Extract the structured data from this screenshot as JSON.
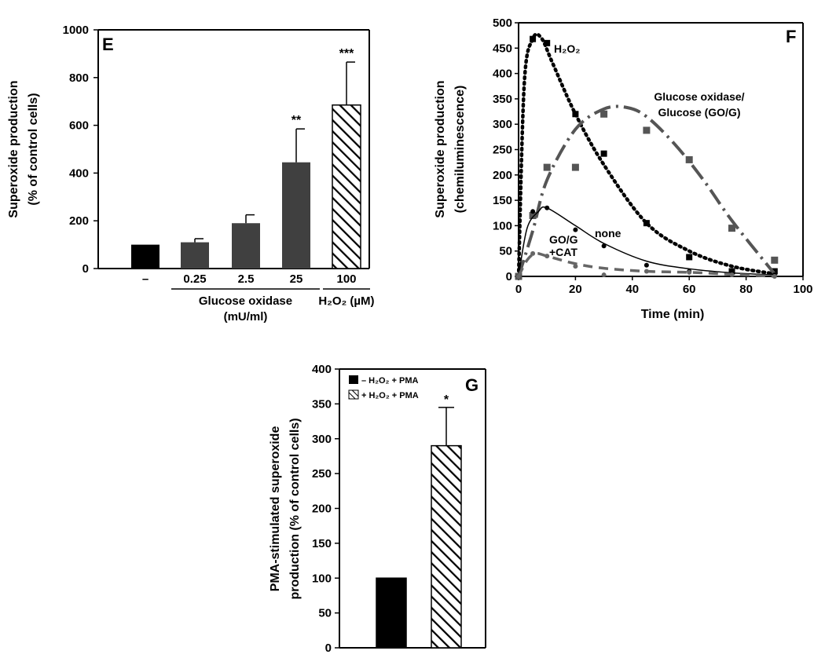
{
  "chart_data": [
    {
      "panel": "E",
      "type": "bar",
      "ylabel_line1": "Superoxide production",
      "ylabel_line2": "(% of control cells)",
      "ylim": [
        0,
        1000
      ],
      "yticks": [
        0,
        200,
        400,
        600,
        800,
        1000
      ],
      "categories": [
        "–",
        "0.25",
        "2.5",
        "25",
        "100"
      ],
      "values": [
        100,
        110,
        190,
        445,
        685
      ],
      "errors": [
        0,
        15,
        35,
        140,
        180
      ],
      "significance": [
        "",
        "",
        "",
        "**",
        "***"
      ],
      "styles": [
        "black",
        "gray",
        "gray",
        "gray",
        "hatched"
      ],
      "group_labels": [
        {
          "line1": "Glucose oxidase",
          "line2": "(mU/ml)",
          "from": 1,
          "to": 3
        },
        {
          "line1": "H₂O₂ (µM)",
          "line2": "",
          "from": 4,
          "to": 4
        }
      ],
      "colors": {
        "black": "#000000",
        "gray": "#404040",
        "hatch": "#000000"
      }
    },
    {
      "panel": "F",
      "type": "line",
      "ylabel_line1": "Superoxide production",
      "ylabel_line2": "(chemiluminescence)",
      "xlabel": "Time (min)",
      "xlim": [
        0,
        100
      ],
      "ylim": [
        0,
        500
      ],
      "xticks": [
        0,
        20,
        40,
        60,
        80,
        100
      ],
      "yticks": [
        0,
        50,
        100,
        150,
        200,
        250,
        300,
        350,
        400,
        450,
        500
      ],
      "series": [
        {
          "name": "H2O2",
          "label": "H₂O₂",
          "style": "dotted",
          "color": "#000000",
          "marker": "square",
          "points": [
            [
              0,
              0
            ],
            [
              5,
              468
            ],
            [
              10,
              460
            ],
            [
              20,
              320
            ],
            [
              30,
              242
            ],
            [
              45,
              105
            ],
            [
              60,
              38
            ],
            [
              75,
              10
            ],
            [
              90,
              10
            ]
          ]
        },
        {
          "name": "GO/G",
          "label_line1": "Glucose oxidase/",
          "label_line2": "Glucose (GO/G)",
          "style": "dashdot",
          "color": "#555555",
          "marker": "square",
          "points": [
            [
              0,
              0
            ],
            [
              5,
              120
            ],
            [
              10,
              215
            ],
            [
              20,
              215
            ],
            [
              30,
              320
            ],
            [
              45,
              288
            ],
            [
              60,
              230
            ],
            [
              75,
              95
            ],
            [
              90,
              32
            ]
          ]
        },
        {
          "name": "none",
          "label": "none",
          "style": "solid",
          "color": "#000000",
          "marker": "circle",
          "points": [
            [
              0,
              0
            ],
            [
              5,
              128
            ],
            [
              10,
              135
            ],
            [
              20,
              92
            ],
            [
              30,
              60
            ],
            [
              45,
              22
            ],
            [
              60,
              10
            ],
            [
              75,
              5
            ],
            [
              90,
              3
            ]
          ]
        },
        {
          "name": "GO/G+CAT",
          "label_line1": "GO/G",
          "label_line2": "+CAT",
          "style": "dashed",
          "color": "#666666",
          "marker": "circle",
          "points": [
            [
              0,
              0
            ],
            [
              5,
              45
            ],
            [
              10,
              40
            ],
            [
              20,
              20
            ],
            [
              30,
              3
            ],
            [
              45,
              10
            ],
            [
              60,
              8
            ],
            [
              75,
              3
            ],
            [
              90,
              0
            ]
          ]
        }
      ]
    },
    {
      "panel": "G",
      "type": "bar",
      "ylabel_line1": "PMA-stimulated superoxide",
      "ylabel_line2": "production (% of control cells)",
      "ylim": [
        0,
        400
      ],
      "yticks": [
        0,
        50,
        100,
        150,
        200,
        250,
        300,
        350,
        400
      ],
      "categories": [
        "–H₂O₂ + PMA",
        "+H₂O₂ + PMA"
      ],
      "values": [
        100,
        290
      ],
      "errors": [
        0,
        55
      ],
      "significance": [
        "",
        "*"
      ],
      "styles": [
        "black",
        "hatched"
      ],
      "legend": [
        "– H₂O₂ + PMA",
        "+ H₂O₂ + PMA"
      ]
    }
  ]
}
